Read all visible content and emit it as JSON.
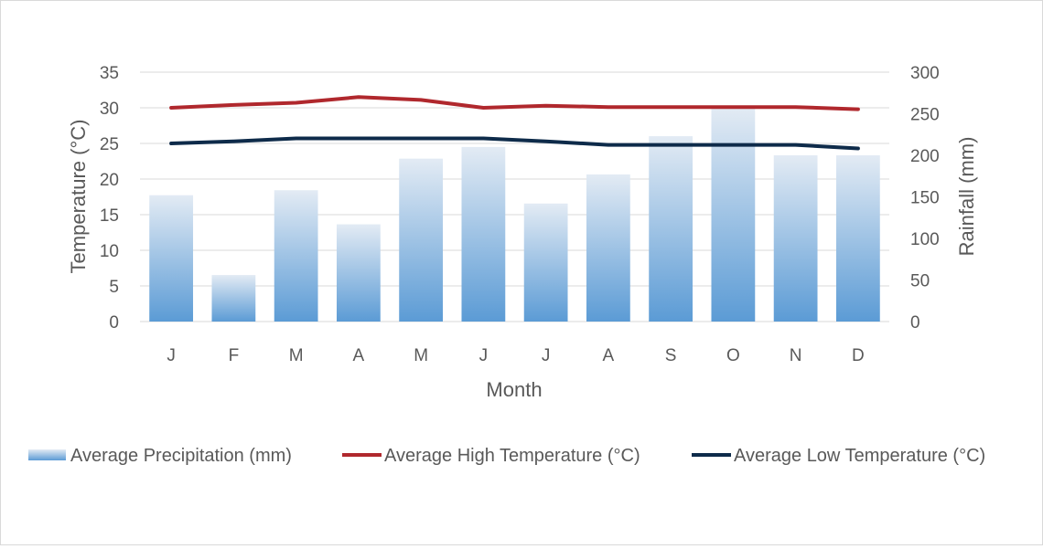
{
  "chart_data": {
    "type": "bar+line",
    "categories": [
      "J",
      "F",
      "M",
      "A",
      "M",
      "J",
      "J",
      "A",
      "S",
      "O",
      "N",
      "D"
    ],
    "xlabel": "Month",
    "ylabel_left": "Temperature (°C)",
    "ylabel_right": "Rainfall (mm)",
    "ylim_left": [
      0,
      35
    ],
    "ylim_right": [
      0,
      300
    ],
    "yticks_left": [
      "0",
      "5",
      "10",
      "15",
      "20",
      "25",
      "30",
      "35"
    ],
    "yticks_right": [
      "0",
      "50",
      "100",
      "150",
      "200",
      "250",
      "300"
    ],
    "grid": true,
    "legend_position": "bottom",
    "series": [
      {
        "name": "Average Precipitation (mm)",
        "kind": "bar",
        "axis": "right",
        "color_top": "#e3ebf4",
        "color_bottom": "#5b9bd5",
        "values": [
          152,
          56,
          158,
          117,
          196,
          210,
          142,
          177,
          223,
          257,
          200,
          200
        ]
      },
      {
        "name": "Average High Temperature (°C)",
        "kind": "line",
        "axis": "left",
        "color": "#b0282d",
        "values": [
          30,
          30.4,
          30.7,
          31.5,
          31.1,
          30,
          30.3,
          30.1,
          30.1,
          30.1,
          30.1,
          29.8
        ]
      },
      {
        "name": "Average Low Temperature (°C)",
        "kind": "line",
        "axis": "left",
        "color": "#0e2b4a",
        "values": [
          25,
          25.3,
          25.7,
          25.7,
          25.7,
          25.7,
          25.3,
          24.8,
          24.8,
          24.8,
          24.8,
          24.3
        ]
      }
    ]
  }
}
